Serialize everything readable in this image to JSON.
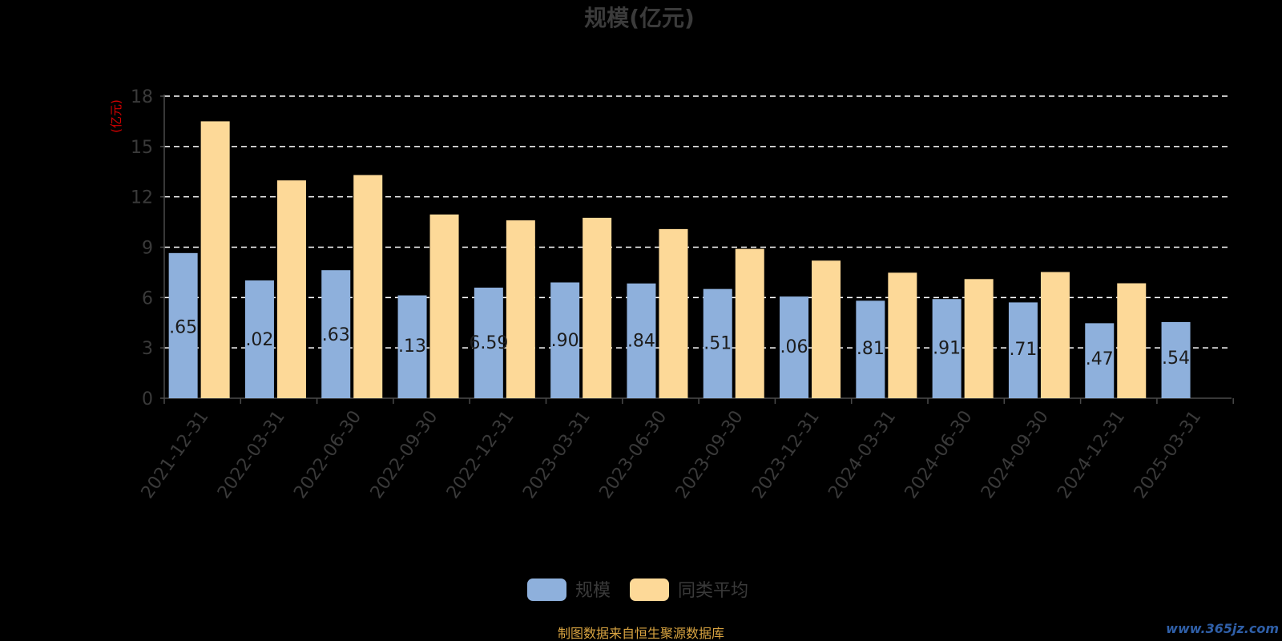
{
  "chart_data": {
    "type": "bar",
    "title": "规模(亿元)",
    "ylabel": "(亿元)",
    "ylim": [
      0,
      18
    ],
    "yticks": [
      0,
      3,
      6,
      9,
      12,
      15,
      18
    ],
    "grid": true,
    "legend_position": "bottom",
    "categories": [
      "2021-12-31",
      "2022-03-31",
      "2022-06-30",
      "2022-09-30",
      "2022-12-31",
      "2023-03-31",
      "2023-06-30",
      "2023-09-30",
      "2023-12-31",
      "2024-03-31",
      "2024-06-30",
      "2024-09-30",
      "2024-12-31",
      "2025-03-31"
    ],
    "series": [
      {
        "name": "规模",
        "color": "#8eb0dc",
        "values": [
          8.65,
          7.02,
          7.63,
          6.13,
          6.59,
          6.9,
          6.84,
          6.51,
          6.06,
          5.81,
          5.91,
          5.71,
          4.47,
          4.54
        ],
        "labels": [
          ".65",
          ".02",
          ".63",
          ".13",
          "6.59",
          ".90",
          ".84",
          ".51",
          ".06",
          ".81",
          ".91",
          ".71",
          ".47",
          ".54"
        ]
      },
      {
        "name": "同类平均",
        "color": "#fdd998",
        "values": [
          16.5,
          12.98,
          13.3,
          10.95,
          10.6,
          10.75,
          10.08,
          8.9,
          8.2,
          7.48,
          7.1,
          7.52,
          6.85,
          null
        ]
      }
    ]
  },
  "footer": {
    "source": "制图数据来自恒生聚源数据库",
    "watermark": "www.365jz.com"
  }
}
